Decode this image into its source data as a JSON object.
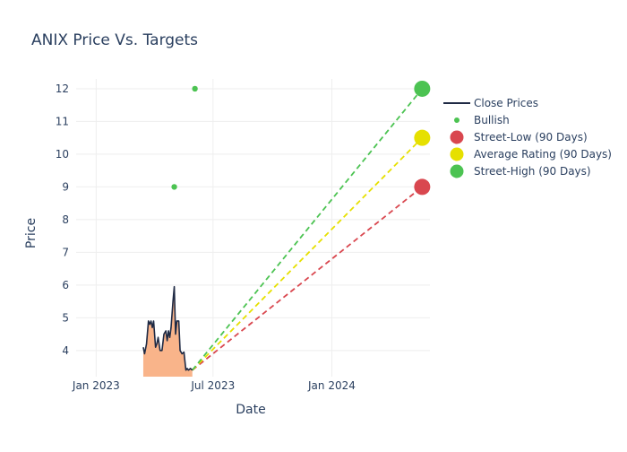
{
  "chart_data": {
    "type": "line",
    "title": "ANIX Price Vs. Targets",
    "xlabel": "Date",
    "ylabel": "Price",
    "x_ticks": [
      {
        "date": "2023-01-01",
        "label": "Jan 2023"
      },
      {
        "date": "2023-07-01",
        "label": "Jul 2023"
      },
      {
        "date": "2024-01-01",
        "label": "Jan 2024"
      }
    ],
    "y_ticks": [
      4,
      5,
      6,
      7,
      8,
      9,
      10,
      11,
      12
    ],
    "xlim": [
      "2022-12-01",
      "2024-06-01"
    ],
    "ylim": [
      3.2,
      12.3
    ],
    "grid": true,
    "legend_position": "top-right",
    "colors": {
      "close": "#1f2a44",
      "area_fill": "#f9b48a",
      "bullish": "#4cc352",
      "street_low": "#d9474f",
      "average": "#e6e000",
      "street_high": "#4cc352",
      "grid": "#eeeeee",
      "text": "#2a3f5f"
    },
    "legend": [
      {
        "label": "Close Prices",
        "kind": "line",
        "color": "#1f2a44"
      },
      {
        "label": "Bullish",
        "kind": "small-dot",
        "color": "#4cc352"
      },
      {
        "label": "Street-Low (90 Days)",
        "kind": "big-dot",
        "color": "#d9474f"
      },
      {
        "label": "Average Rating (90 Days)",
        "kind": "big-dot",
        "color": "#e6e000"
      },
      {
        "label": "Street-High (90 Days)",
        "kind": "big-dot",
        "color": "#4cc352"
      }
    ],
    "close_prices": [
      {
        "x": "2023-03-15",
        "y": 4.1
      },
      {
        "x": "2023-03-17",
        "y": 3.9
      },
      {
        "x": "2023-03-20",
        "y": 4.2
      },
      {
        "x": "2023-03-23",
        "y": 4.9
      },
      {
        "x": "2023-03-25",
        "y": 4.8
      },
      {
        "x": "2023-03-27",
        "y": 4.9
      },
      {
        "x": "2023-03-29",
        "y": 4.7
      },
      {
        "x": "2023-03-31",
        "y": 4.9
      },
      {
        "x": "2023-04-03",
        "y": 4.1
      },
      {
        "x": "2023-04-05",
        "y": 4.2
      },
      {
        "x": "2023-04-07",
        "y": 4.4
      },
      {
        "x": "2023-04-10",
        "y": 4.0
      },
      {
        "x": "2023-04-13",
        "y": 4.0
      },
      {
        "x": "2023-04-16",
        "y": 4.5
      },
      {
        "x": "2023-04-19",
        "y": 4.6
      },
      {
        "x": "2023-04-21",
        "y": 4.3
      },
      {
        "x": "2023-04-23",
        "y": 4.6
      },
      {
        "x": "2023-04-25",
        "y": 4.4
      },
      {
        "x": "2023-04-27",
        "y": 4.7
      },
      {
        "x": "2023-04-30",
        "y": 5.5
      },
      {
        "x": "2023-05-02",
        "y": 5.95
      },
      {
        "x": "2023-05-04",
        "y": 4.5
      },
      {
        "x": "2023-05-06",
        "y": 4.9
      },
      {
        "x": "2023-05-09",
        "y": 4.9
      },
      {
        "x": "2023-05-11",
        "y": 4.0
      },
      {
        "x": "2023-05-14",
        "y": 3.9
      },
      {
        "x": "2023-05-17",
        "y": 3.95
      },
      {
        "x": "2023-05-20",
        "y": 3.4
      },
      {
        "x": "2023-05-22",
        "y": 3.45
      },
      {
        "x": "2023-05-24",
        "y": 3.4
      },
      {
        "x": "2023-05-27",
        "y": 3.45
      },
      {
        "x": "2023-05-30",
        "y": 3.4
      }
    ],
    "bullish_points": [
      {
        "x": "2023-05-02",
        "y": 9
      },
      {
        "x": "2023-06-03",
        "y": 12
      }
    ],
    "targets": {
      "start": {
        "x": "2023-05-30",
        "y": 3.4
      },
      "end_date": "2024-05-20",
      "street_low": 9,
      "average": 10.5,
      "street_high": 12
    }
  }
}
